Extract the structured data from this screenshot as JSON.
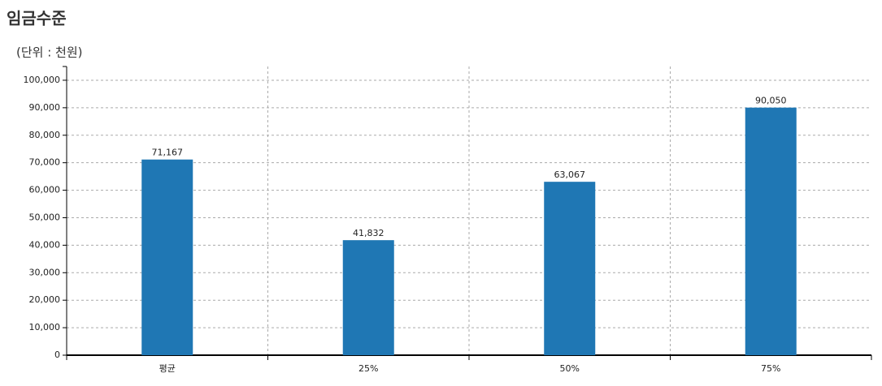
{
  "chart_data": {
    "type": "bar",
    "title": "임금수준",
    "subtitle": "(단위 : 천원)",
    "categories": [
      "평균",
      "25%",
      "50%",
      "75%"
    ],
    "values": [
      71167,
      41832,
      63067,
      90050
    ],
    "value_labels": [
      "71,167",
      "41,832",
      "63,067",
      "90,050"
    ],
    "color": "#1f77b4",
    "ylim": [
      0,
      105000
    ],
    "yticks": [
      0,
      {
        "value": 10000,
        "label": "10,000"
      },
      {
        "value": 20000,
        "label": "20,000"
      },
      {
        "value": 30000,
        "label": "30,000"
      },
      {
        "value": 40000,
        "label": "40,000"
      },
      {
        "value": 50000,
        "label": "50,000"
      },
      {
        "value": 60000,
        "label": "60,000"
      },
      {
        "value": 70000,
        "label": "70,000"
      },
      {
        "value": 80000,
        "label": "80,000"
      },
      {
        "value": 90000,
        "label": "90,000"
      },
      {
        "value": 100000,
        "label": "100,000"
      }
    ],
    "grid": true
  }
}
